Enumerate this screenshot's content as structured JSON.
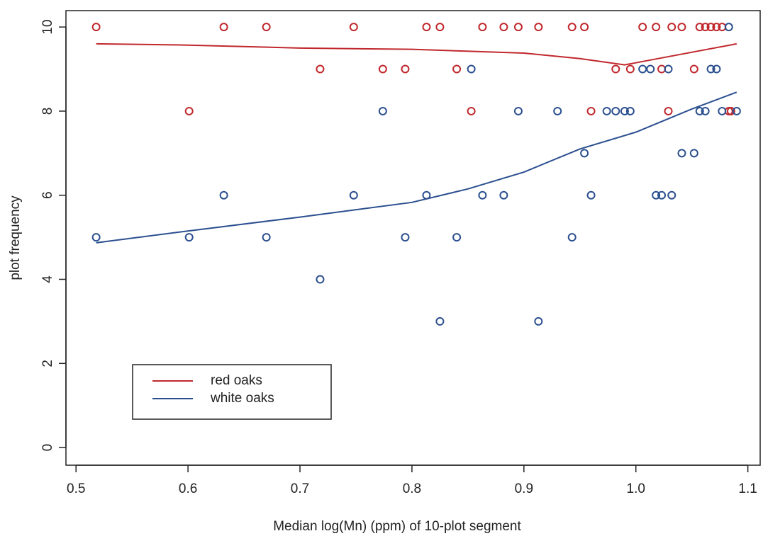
{
  "chart_data": {
    "type": "scatter",
    "x_label": "Median log(Mn) (ppm) of 10-plot segment",
    "y_label": "plot frequency",
    "xlim": [
      0.491,
      1.111
    ],
    "ylim": [
      -0.42,
      10.39
    ],
    "xticks": [
      0.5,
      0.6,
      0.7,
      0.8,
      0.9,
      {
        "value": 1,
        "label": "1.0"
      },
      1.1
    ],
    "yticks": [
      0,
      2,
      4,
      6,
      8,
      10
    ],
    "legend": "bottom-left",
    "series": [
      {
        "name": "red oaks",
        "color": "#c0282d",
        "x": [
          0.518,
          0.601,
          0.632,
          0.67,
          0.718,
          0.748,
          0.774,
          0.794,
          0.813,
          0.825,
          0.84,
          0.853,
          0.863,
          0.882,
          0.895,
          0.913,
          0.943,
          0.954,
          0.96,
          0.982,
          0.995,
          1.006,
          1.018,
          1.023,
          1.029,
          1.032,
          1.041,
          1.052,
          1.057,
          1.062,
          1.067,
          1.072,
          1.077,
          1.083,
          1.085
        ],
        "values": [
          10,
          8,
          10,
          10,
          9,
          10,
          9,
          9,
          10,
          10,
          9,
          8,
          10,
          10,
          10,
          10,
          10,
          10,
          8,
          9,
          9,
          10,
          10,
          9,
          8,
          10,
          10,
          9,
          10,
          10,
          10,
          10,
          10,
          8,
          8
        ],
        "fit": {
          "x": [
            0.518,
            0.6,
            0.7,
            0.8,
            0.9,
            0.95,
            0.99,
            1.02,
            1.09
          ],
          "values": [
            9.6,
            9.57,
            9.5,
            9.47,
            9.38,
            9.25,
            9.1,
            9.25,
            9.6
          ]
        }
      },
      {
        "name": "white oaks",
        "color": "#2b4f8f",
        "x": [
          0.518,
          0.601,
          0.632,
          0.67,
          0.718,
          0.748,
          0.774,
          0.794,
          0.813,
          0.825,
          0.84,
          0.853,
          0.863,
          0.882,
          0.895,
          0.913,
          0.93,
          0.943,
          0.954,
          0.96,
          0.974,
          0.982,
          0.99,
          0.995,
          1.006,
          1.013,
          1.018,
          1.023,
          1.029,
          1.032,
          1.041,
          1.052,
          1.057,
          1.062,
          1.067,
          1.072,
          1.077,
          1.083,
          1.09
        ],
        "values": [
          5,
          5,
          6,
          5,
          4,
          6,
          8,
          5,
          6,
          3,
          5,
          9,
          6,
          6,
          8,
          3,
          8,
          5,
          7,
          6,
          8,
          8,
          8,
          8,
          9,
          9,
          6,
          6,
          9,
          6,
          7,
          7,
          8,
          8,
          9,
          9,
          8,
          10,
          8
        ],
        "fit": {
          "x": [
            0.518,
            0.6,
            0.7,
            0.8,
            0.85,
            0.9,
            0.95,
            1.0,
            1.05,
            1.09
          ],
          "values": [
            4.87,
            5.15,
            5.48,
            5.83,
            6.15,
            6.55,
            7.1,
            7.5,
            8.05,
            8.45
          ]
        }
      }
    ]
  }
}
